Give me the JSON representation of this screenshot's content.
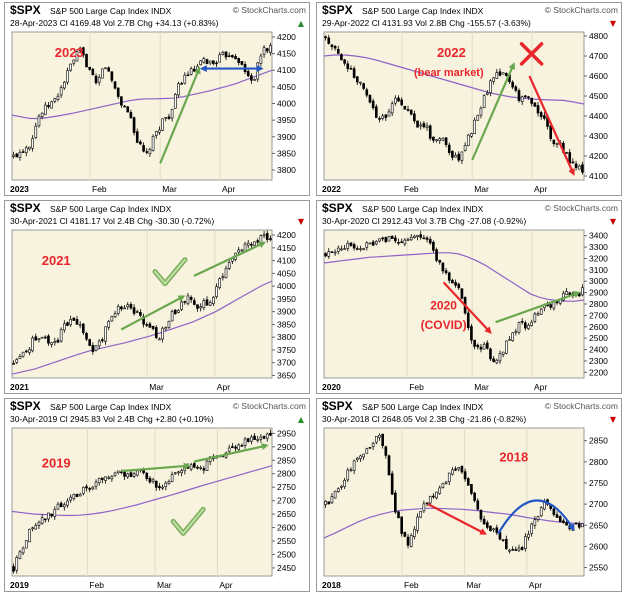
{
  "colors": {
    "panel_bg": "#f8f3de",
    "border": "#9a9a9a",
    "candle": "#000000",
    "moving_average": "#8e63c7",
    "arrow_green": "#6aa84f",
    "arrow_red": "#e8262c",
    "arrow_blue": "#2457c5",
    "annotation_red": "#e8262c",
    "header_red": "#cc0000"
  },
  "chart_data": [
    {
      "type": "candlestick",
      "symbol": "$SPX",
      "description": "S&P 500 Large Cap Index",
      "exchange": "INDX",
      "brand": "© StockCharts.com",
      "date": "28-Apr-2023",
      "close_label": "Cl 4169.48",
      "volume_label": "Vol 2.7B",
      "change_label": "Chg +34.13 (+0.83%)",
      "change_direction": "up",
      "annotation": [
        "2023"
      ],
      "x_labels": [
        "2023",
        "Feb",
        "Mar",
        "Apr"
      ],
      "y_ticks": [
        "4200",
        "4150",
        "4100",
        "4050",
        "4000",
        "3950",
        "3900",
        "3850",
        "3800"
      ],
      "ylim": [
        3770,
        4215
      ],
      "close_path": [
        3840,
        3860,
        3880,
        3960,
        3990,
        4010,
        4060,
        4120,
        4160,
        4110,
        4050,
        4120,
        4060,
        4000,
        3970,
        3880,
        3840,
        3900,
        3950,
        3970,
        4060,
        4090,
        4100,
        4130,
        4120,
        4140,
        4150,
        4140,
        4090,
        4070,
        4160,
        4169
      ],
      "ma_path": [
        3965,
        3960,
        3955,
        3955,
        3958,
        3962,
        3967,
        3972,
        3978,
        3984,
        3990,
        3996,
        4002,
        4008,
        4012,
        4014,
        4014,
        4015,
        4016,
        4020,
        4026,
        4032,
        4038,
        4045,
        4052,
        4060,
        4070,
        4080,
        4090,
        4100
      ],
      "arrows": [
        {
          "color": "green",
          "from": [
            0.57,
            3820
          ],
          "to": [
            0.72,
            4105
          ]
        },
        {
          "color": "blue",
          "from": [
            0.73,
            4105
          ],
          "to": [
            0.96,
            4105
          ],
          "double": true
        }
      ],
      "checkmark": false,
      "xmark": false
    },
    {
      "type": "candlestick",
      "symbol": "$SPX",
      "description": "S&P 500 Large Cap Index",
      "exchange": "INDX",
      "brand": "© StockCharts.com",
      "date": "29-Apr-2022",
      "close_label": "Cl 4131.93",
      "volume_label": "Vol 2.8B",
      "change_label": "Chg -155.57 (-3.63%)",
      "change_direction": "down",
      "annotation": [
        "2022",
        "(bear market)"
      ],
      "x_labels": [
        "2022",
        "Feb",
        "Mar",
        "Apr"
      ],
      "y_ticks": [
        "4800",
        "4700",
        "4600",
        "4500",
        "4400",
        "4300",
        "4200",
        "4100"
      ],
      "ylim": [
        4080,
        4820
      ],
      "close_path": [
        4790,
        4740,
        4680,
        4640,
        4580,
        4520,
        4440,
        4380,
        4420,
        4500,
        4440,
        4400,
        4350,
        4340,
        4260,
        4300,
        4200,
        4180,
        4260,
        4350,
        4460,
        4550,
        4600,
        4610,
        4560,
        4480,
        4500,
        4440,
        4390,
        4280,
        4270,
        4200,
        4150,
        4132
      ],
      "ma_path": [
        4700,
        4705,
        4705,
        4700,
        4692,
        4680,
        4665,
        4650,
        4635,
        4620,
        4605,
        4590,
        4575,
        4560,
        4545,
        4530,
        4515,
        4505,
        4495,
        4490,
        4485,
        4482,
        4480,
        4478,
        4470,
        4460
      ],
      "arrows": [
        {
          "color": "green",
          "from": [
            0.57,
            4180
          ],
          "to": [
            0.73,
            4660
          ]
        },
        {
          "color": "red",
          "from": [
            0.79,
            4600
          ],
          "to": [
            0.96,
            4110
          ]
        }
      ],
      "checkmark": false,
      "xmark": true
    },
    {
      "type": "candlestick",
      "symbol": "$SPX",
      "description": "S&P 500 Large Cap Index",
      "exchange": "INDX",
      "brand": "",
      "date": "30-Apr-2021",
      "close_label": "Cl 4181.17",
      "volume_label": "Vol 2.4B",
      "change_label": "Chg -30.30 (-0.72%)",
      "change_direction": "down",
      "annotation": [
        "2021"
      ],
      "x_labels": [
        "2021",
        "Mar",
        "Apr"
      ],
      "y_ticks": [
        "4200",
        "4150",
        "4100",
        "4050",
        "4000",
        "3950",
        "3900",
        "3850",
        "3800",
        "3750",
        "3700",
        "3650"
      ],
      "ylim": [
        3640,
        4220
      ],
      "close_path": [
        3700,
        3730,
        3760,
        3800,
        3810,
        3760,
        3790,
        3850,
        3870,
        3840,
        3780,
        3750,
        3790,
        3860,
        3910,
        3930,
        3920,
        3880,
        3850,
        3820,
        3800,
        3870,
        3900,
        3940,
        3960,
        3900,
        3950,
        3920,
        4020,
        4080,
        4120,
        4140,
        4170,
        4180,
        4190,
        4181
      ],
      "ma_path": [
        3655,
        3665,
        3675,
        3690,
        3705,
        3720,
        3735,
        3748,
        3758,
        3768,
        3778,
        3790,
        3802,
        3815,
        3830,
        3845,
        3860,
        3880,
        3900,
        3925,
        3950,
        3975,
        4000,
        4020
      ],
      "arrows": [
        {
          "color": "green",
          "from": [
            0.42,
            3830
          ],
          "to": [
            0.66,
            3960
          ]
        },
        {
          "color": "green",
          "from": [
            0.7,
            4040
          ],
          "to": [
            0.97,
            4170
          ]
        }
      ],
      "checkmark": true,
      "xmark": false
    },
    {
      "type": "candlestick",
      "symbol": "$SPX",
      "description": "S&P 500 Large Cap Index",
      "exchange": "INDX",
      "brand": "© StockCharts.com",
      "date": "30-Apr-2020",
      "close_label": "Cl 2912.43",
      "volume_label": "Vol 3.7B",
      "change_label": "Chg -27.08 (-0.92%)",
      "change_direction": "down",
      "annotation": [
        "2020",
        "(COVID)"
      ],
      "x_labels": [
        "2020",
        "Feb",
        "Mar",
        "Apr"
      ],
      "y_ticks": [
        "3400",
        "3300",
        "3200",
        "3100",
        "3000",
        "2900",
        "2800",
        "2700",
        "2600",
        "2500",
        "2400",
        "2300",
        "2200"
      ],
      "ylim": [
        2150,
        3450
      ],
      "close_path": [
        3240,
        3260,
        3280,
        3300,
        3320,
        3300,
        3330,
        3350,
        3360,
        3380,
        3370,
        3350,
        3360,
        3380,
        3380,
        3360,
        3200,
        3100,
        3000,
        2950,
        2750,
        2500,
        2400,
        2480,
        2300,
        2320,
        2450,
        2550,
        2620,
        2600,
        2700,
        2750,
        2790,
        2800,
        2850,
        2900,
        2890,
        2912
      ],
      "ma_path": [
        3160,
        3170,
        3180,
        3190,
        3200,
        3210,
        3215,
        3220,
        3225,
        3230,
        3235,
        3240,
        3245,
        3250,
        3250,
        3240,
        3215,
        3180,
        3140,
        3090,
        3040,
        2990,
        2940,
        2890,
        2860,
        2840,
        2830,
        2825,
        2825,
        2835
      ],
      "arrows": [
        {
          "color": "red",
          "from": [
            0.46,
            2990
          ],
          "to": [
            0.64,
            2550
          ]
        },
        {
          "color": "green",
          "from": [
            0.66,
            2640
          ],
          "to": [
            0.98,
            2900
          ]
        }
      ],
      "checkmark": false,
      "xmark": false
    },
    {
      "type": "candlestick",
      "symbol": "$SPX",
      "description": "S&P 500 Large Cap Index",
      "exchange": "INDX",
      "brand": "© StockCharts.com",
      "date": "30-Apr-2019",
      "close_label": "Cl 2945.83",
      "volume_label": "Vol 2.4B",
      "change_label": "Chg +2.80 (+0.10%)",
      "change_direction": "up",
      "annotation": [
        "2019"
      ],
      "x_labels": [
        "2019",
        "Feb",
        "Mar",
        "Apr"
      ],
      "y_ticks": [
        "2950",
        "2900",
        "2850",
        "2800",
        "2750",
        "2700",
        "2650",
        "2600",
        "2550",
        "2500",
        "2450"
      ],
      "ylim": [
        2420,
        2970
      ],
      "close_path": [
        2450,
        2520,
        2580,
        2600,
        2630,
        2650,
        2680,
        2700,
        2720,
        2740,
        2750,
        2770,
        2780,
        2790,
        2800,
        2790,
        2810,
        2800,
        2780,
        2750,
        2760,
        2800,
        2820,
        2830,
        2810,
        2820,
        2850,
        2860,
        2880,
        2900,
        2910,
        2920,
        2930,
        2940,
        2946
      ],
      "ma_path": [
        2660,
        2655,
        2650,
        2648,
        2646,
        2645,
        2646,
        2650,
        2656,
        2664,
        2674,
        2684,
        2696,
        2708,
        2720,
        2732,
        2745,
        2758,
        2770,
        2782,
        2794,
        2806,
        2818,
        2830
      ],
      "arrows": [
        {
          "color": "green",
          "from": [
            0.42,
            2810
          ],
          "to": [
            0.68,
            2830
          ]
        },
        {
          "color": "green",
          "from": [
            0.7,
            2845
          ],
          "to": [
            0.98,
            2905
          ]
        }
      ],
      "checkmark": true,
      "xmark": false
    },
    {
      "type": "candlestick",
      "symbol": "$SPX",
      "description": "S&P 500 Large Cap Index",
      "exchange": "INDX",
      "brand": "© StockCharts.com",
      "date": "30-Apr-2018",
      "close_label": "Cl 2648.05",
      "volume_label": "Vol 2.3B",
      "change_label": "Chg -21.86 (-0.82%)",
      "change_direction": "down",
      "annotation": [
        "2018"
      ],
      "x_labels": [
        "2018",
        "Feb",
        "Mar",
        "Apr"
      ],
      "y_ticks": [
        "2850",
        "2800",
        "2750",
        "2700",
        "2650",
        "2600",
        "2550"
      ],
      "ylim": [
        2530,
        2880
      ],
      "close_path": [
        2700,
        2720,
        2740,
        2780,
        2800,
        2820,
        2840,
        2860,
        2820,
        2700,
        2640,
        2600,
        2660,
        2700,
        2720,
        2730,
        2750,
        2790,
        2780,
        2740,
        2700,
        2650,
        2640,
        2620,
        2600,
        2580,
        2600,
        2640,
        2670,
        2700,
        2680,
        2660,
        2640,
        2650,
        2648
      ],
      "ma_path": [
        2620,
        2632,
        2645,
        2658,
        2668,
        2676,
        2682,
        2686,
        2688,
        2690,
        2690,
        2689,
        2688,
        2686,
        2683,
        2680,
        2677,
        2673,
        2668,
        2664,
        2660,
        2657,
        2655,
        2654
      ],
      "arrows": [
        {
          "color": "red",
          "from": [
            0.4,
            2700
          ],
          "to": [
            0.62,
            2630
          ]
        },
        {
          "color": "blue",
          "arc": true,
          "from": [
            0.67,
            2630
          ],
          "to": [
            0.96,
            2640
          ],
          "peak": 2725
        }
      ],
      "checkmark": false,
      "xmark": false
    }
  ]
}
